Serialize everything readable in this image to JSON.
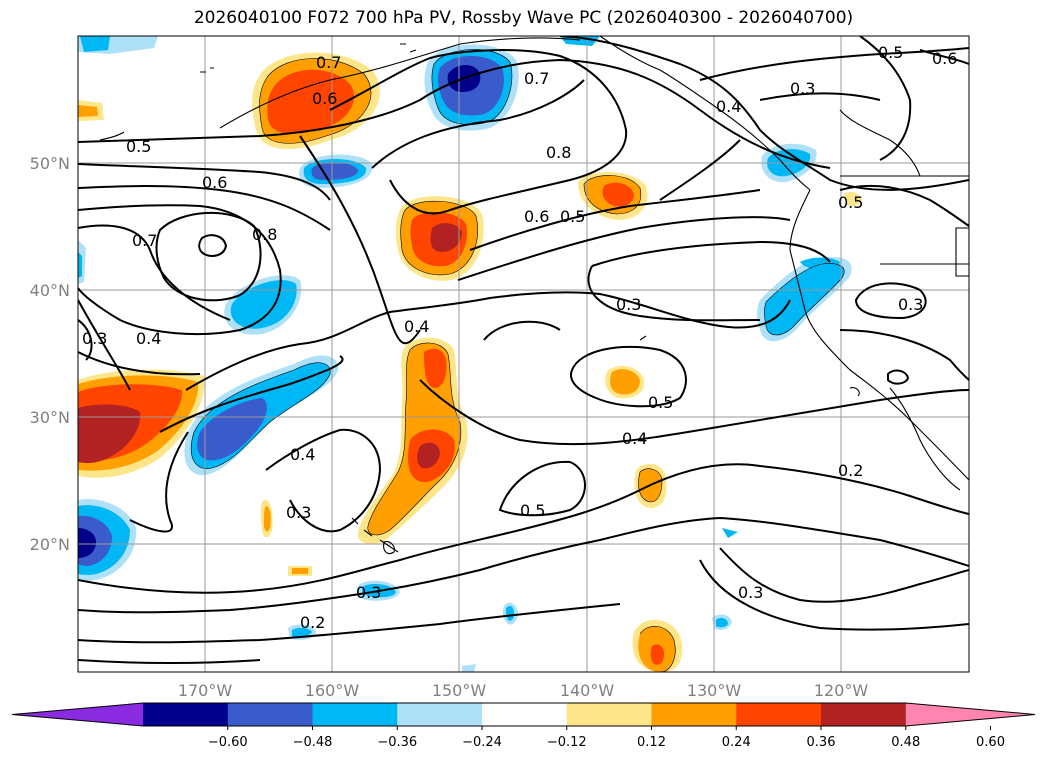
{
  "title": "2026040100 F072 700 hPa PV, Rossby Wave PC (2026040300 - 2026040700)",
  "map": {
    "lat_labels": [
      "50°N",
      "40°N",
      "30°N",
      "20°N"
    ],
    "lon_labels": [
      "170°W",
      "160°W",
      "150°W",
      "140°W",
      "130°W",
      "120°W"
    ],
    "contour_labels": [
      {
        "id": "c1",
        "text": "0.7"
      },
      {
        "id": "c2",
        "text": "0.6"
      },
      {
        "id": "c3",
        "text": "0.7"
      },
      {
        "id": "c4",
        "text": "0.8"
      },
      {
        "id": "c5",
        "text": "0.5"
      },
      {
        "id": "c6",
        "text": "0.6"
      },
      {
        "id": "c7",
        "text": "0.7"
      },
      {
        "id": "c8",
        "text": "0.8"
      },
      {
        "id": "c9",
        "text": "0.6"
      },
      {
        "id": "c10",
        "text": "0.5"
      },
      {
        "id": "c11",
        "text": "0.3"
      },
      {
        "id": "c12",
        "text": "0.4"
      },
      {
        "id": "c13",
        "text": "0.5"
      },
      {
        "id": "c14",
        "text": "0.6"
      },
      {
        "id": "c15",
        "text": "0.3"
      },
      {
        "id": "c16",
        "text": "0.4"
      },
      {
        "id": "c17",
        "text": "0.4"
      },
      {
        "id": "c18",
        "text": "0.3"
      },
      {
        "id": "c19",
        "text": "0.5"
      },
      {
        "id": "c20",
        "text": "0.3"
      },
      {
        "id": "c21",
        "text": "0.4"
      },
      {
        "id": "c22",
        "text": "0.4"
      },
      {
        "id": "c23",
        "text": "0.3"
      },
      {
        "id": "c24",
        "text": "0.5"
      },
      {
        "id": "c25",
        "text": "0.2"
      },
      {
        "id": "c26",
        "text": "0.3"
      },
      {
        "id": "c27",
        "text": "0.2"
      },
      {
        "id": "c28",
        "text": "0.3"
      },
      {
        "id": "c29",
        "text": "0.5"
      }
    ]
  },
  "colorbar": {
    "ticks": [
      "−0.60",
      "−0.48",
      "−0.36",
      "−0.24",
      "−0.12",
      "0.12",
      "0.24",
      "0.36",
      "0.48",
      "0.60"
    ],
    "colors": [
      "#8a2be2",
      "#00008b",
      "#3a5bcc",
      "#00b7f5",
      "#aee0f7",
      "#ffffff",
      "#fde68a",
      "#ff9f00",
      "#ff4500",
      "#b22222",
      "#ff85b0"
    ]
  }
}
